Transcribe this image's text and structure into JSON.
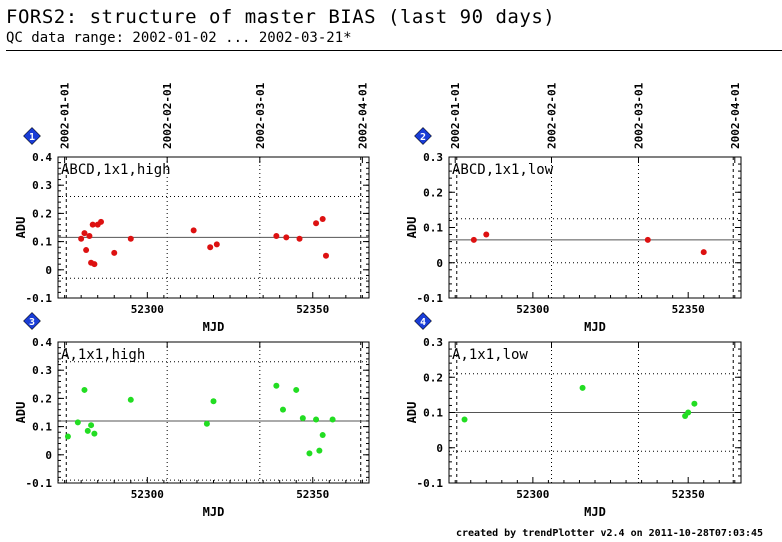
{
  "header": {
    "title": "FORS2: structure of master BIAS (last 90 days)",
    "subtitle": "QC data range: 2002-01-02 ... 2002-03-21*"
  },
  "footer": {
    "credit": "created by trendPlotter v2.4 on 2011-10-28T07:03:45"
  },
  "colors": {
    "marker_blue": "#1a3dd6",
    "red_points": "#dd1111",
    "green_points": "#22dd22",
    "axis": "#000000"
  },
  "chart_data": [
    {
      "type": "scatter",
      "badge": "1",
      "label": "ABCD,1x1,high",
      "xlabel": "MJD",
      "ylabel": "ADU",
      "xlim": [
        52273,
        52367
      ],
      "ylim": [
        -0.1,
        0.4
      ],
      "x_ticks": [
        "52300",
        "52350"
      ],
      "y_ticks": [
        "-0.1",
        "0",
        "0.1",
        "0.2",
        "0.3",
        "0.4"
      ],
      "top_dates": [
        "2002-01-01",
        "2002-02-01",
        "2002-03-01",
        "2002-04-01"
      ],
      "reference_line": 0.115,
      "dotted_lines": [
        0.26,
        -0.03
      ],
      "point_color": "#dd1111",
      "x": [
        52280,
        52281,
        52281.5,
        52282.5,
        52283,
        52283.5,
        52284,
        52285,
        52286,
        52290,
        52295,
        52314,
        52319,
        52321,
        52339,
        52342,
        52346,
        52351,
        52353,
        52354
      ],
      "y": [
        0.11,
        0.13,
        0.07,
        0.12,
        0.025,
        0.16,
        0.02,
        0.16,
        0.17,
        0.06,
        0.11,
        0.14,
        0.08,
        0.09,
        0.12,
        0.115,
        0.11,
        0.165,
        0.18,
        0.05
      ]
    },
    {
      "type": "scatter",
      "badge": "2",
      "label": "ABCD,1x1,low",
      "xlabel": "MJD",
      "ylabel": "ADU",
      "xlim": [
        52273,
        52367
      ],
      "ylim": [
        -0.1,
        0.3
      ],
      "x_ticks": [
        "52300",
        "52350"
      ],
      "y_ticks": [
        "-0.1",
        "0",
        "0.1",
        "0.2",
        "0.3"
      ],
      "top_dates": [
        "2002-01-01",
        "2002-02-01",
        "2002-03-01",
        "2002-04-01"
      ],
      "reference_line": 0.065,
      "dotted_lines": [
        0.125,
        0.0
      ],
      "point_color": "#dd1111",
      "x": [
        52281,
        52285,
        52337,
        52355
      ],
      "y": [
        0.065,
        0.08,
        0.065,
        0.03
      ]
    },
    {
      "type": "scatter",
      "badge": "3",
      "label": "A,1x1,high",
      "xlabel": "MJD",
      "ylabel": "ADU",
      "xlim": [
        52273,
        52367
      ],
      "ylim": [
        -0.1,
        0.4
      ],
      "x_ticks": [
        "52300",
        "52350"
      ],
      "y_ticks": [
        "-0.1",
        "0",
        "0.1",
        "0.2",
        "0.3",
        "0.4"
      ],
      "top_dates": [
        "2002-01-01",
        "2002-02-01",
        "2002-03-01",
        "2002-04-01"
      ],
      "reference_line": 0.12,
      "dotted_lines": [
        0.33,
        -0.09
      ],
      "point_color": "#22dd22",
      "x": [
        52276,
        52279,
        52281,
        52282,
        52283,
        52284,
        52295,
        52318,
        52320,
        52339,
        52341,
        52345,
        52347,
        52349,
        52351,
        52352,
        52353,
        52356
      ],
      "y": [
        0.065,
        0.115,
        0.23,
        0.085,
        0.105,
        0.075,
        0.195,
        0.11,
        0.19,
        0.245,
        0.16,
        0.23,
        0.13,
        0.005,
        0.125,
        0.015,
        0.07,
        0.125
      ]
    },
    {
      "type": "scatter",
      "badge": "4",
      "label": "A,1x1,low",
      "xlabel": "MJD",
      "ylabel": "ADU",
      "xlim": [
        52273,
        52367
      ],
      "ylim": [
        -0.1,
        0.3
      ],
      "x_ticks": [
        "52300",
        "52350"
      ],
      "y_ticks": [
        "-0.1",
        "0",
        "0.1",
        "0.2",
        "0.3"
      ],
      "top_dates": [
        "2002-01-01",
        "2002-02-01",
        "2002-03-01",
        "2002-04-01"
      ],
      "reference_line": 0.1,
      "dotted_lines": [
        0.21,
        -0.01
      ],
      "point_color": "#22dd22",
      "x": [
        52278,
        52316,
        52349,
        52350,
        52352
      ],
      "y": [
        0.08,
        0.17,
        0.09,
        0.1,
        0.125
      ]
    }
  ]
}
